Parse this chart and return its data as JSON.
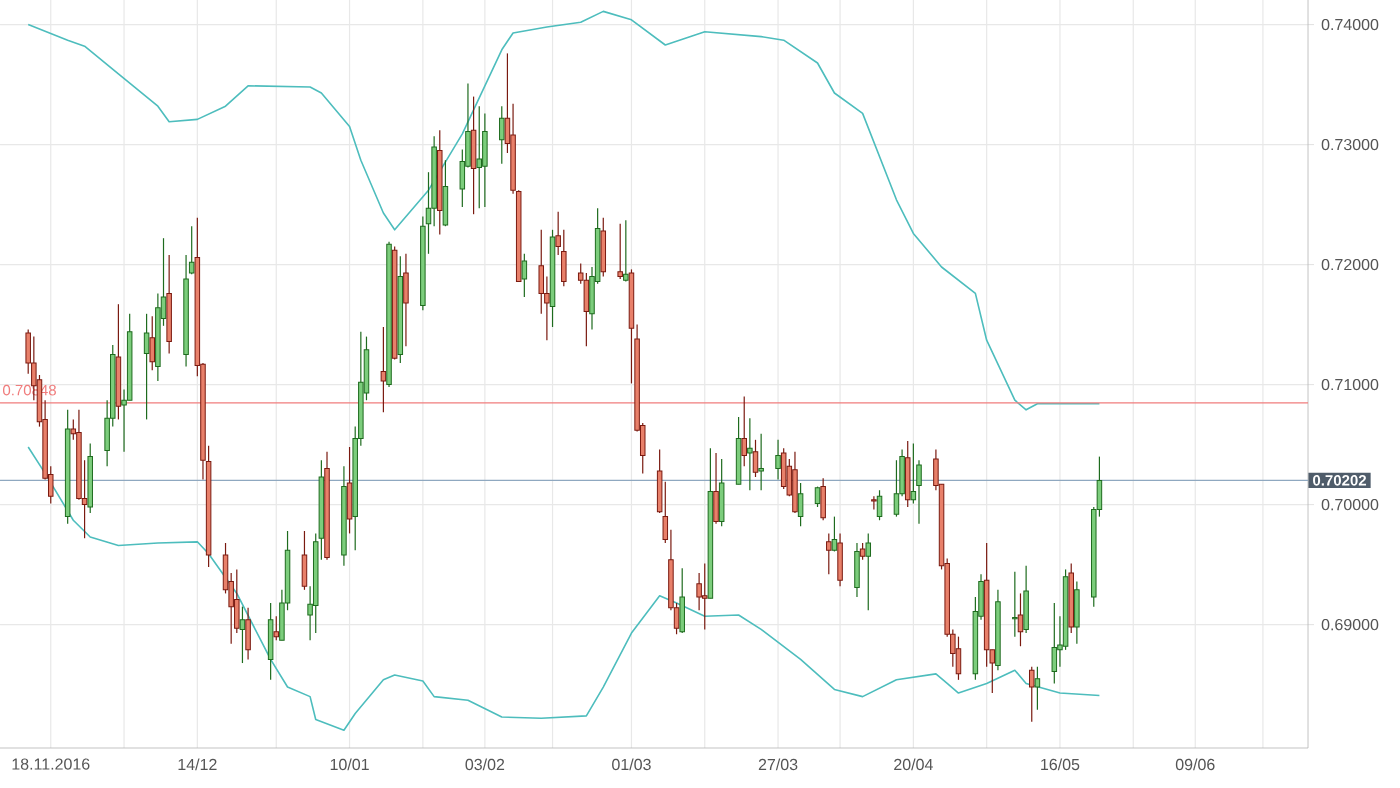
{
  "chart_data": {
    "type": "candlestick",
    "x": [
      "2016-11-14",
      "2016-11-15",
      "2016-11-16",
      "2016-11-17",
      "2016-11-18",
      "2016-11-21",
      "2016-11-22",
      "2016-11-23",
      "2016-11-24",
      "2016-11-25",
      "2016-11-28",
      "2016-11-29",
      "2016-11-30",
      "2016-12-01",
      "2016-12-02",
      "2016-12-05",
      "2016-12-06",
      "2016-12-07",
      "2016-12-08",
      "2016-12-09",
      "2016-12-12",
      "2016-12-13",
      "2016-12-14",
      "2016-12-15",
      "2016-12-16",
      "2016-12-19",
      "2016-12-20",
      "2016-12-21",
      "2016-12-22",
      "2016-12-23",
      "2016-12-27",
      "2016-12-28",
      "2016-12-29",
      "2016-12-30",
      "2017-01-02",
      "2017-01-03",
      "2017-01-04",
      "2017-01-05",
      "2017-01-06",
      "2017-01-09",
      "2017-01-10",
      "2017-01-11",
      "2017-01-12",
      "2017-01-13",
      "2017-01-16",
      "2017-01-17",
      "2017-01-18",
      "2017-01-19",
      "2017-01-20",
      "2017-01-23",
      "2017-01-24",
      "2017-01-25",
      "2017-01-26",
      "2017-01-27",
      "2017-01-30",
      "2017-01-31",
      "2017-02-01",
      "2017-02-02",
      "2017-02-03",
      "2017-02-06",
      "2017-02-07",
      "2017-02-08",
      "2017-02-09",
      "2017-02-10",
      "2017-02-13",
      "2017-02-14",
      "2017-02-15",
      "2017-02-16",
      "2017-02-17",
      "2017-02-20",
      "2017-02-21",
      "2017-02-22",
      "2017-02-23",
      "2017-02-24",
      "2017-02-27",
      "2017-02-28",
      "2017-03-01",
      "2017-03-02",
      "2017-03-03",
      "2017-03-06",
      "2017-03-07",
      "2017-03-08",
      "2017-03-09",
      "2017-03-10",
      "2017-03-13",
      "2017-03-14",
      "2017-03-15",
      "2017-03-16",
      "2017-03-17",
      "2017-03-20",
      "2017-03-21",
      "2017-03-22",
      "2017-03-23",
      "2017-03-24",
      "2017-03-27",
      "2017-03-28",
      "2017-03-29",
      "2017-03-30",
      "2017-03-31",
      "2017-04-03",
      "2017-04-04",
      "2017-04-05",
      "2017-04-06",
      "2017-04-07",
      "2017-04-10",
      "2017-04-11",
      "2017-04-12",
      "2017-04-13",
      "2017-04-14",
      "2017-04-17",
      "2017-04-18",
      "2017-04-19",
      "2017-04-20",
      "2017-04-21",
      "2017-04-24",
      "2017-04-25",
      "2017-04-26",
      "2017-04-27",
      "2017-04-28",
      "2017-05-01",
      "2017-05-02",
      "2017-05-03",
      "2017-05-04",
      "2017-05-05",
      "2017-05-08",
      "2017-05-09",
      "2017-05-10",
      "2017-05-11",
      "2017-05-12",
      "2017-05-15",
      "2017-05-16",
      "2017-05-17",
      "2017-05-18",
      "2017-05-19",
      "2017-05-22",
      "2017-05-23"
    ],
    "xlim": [
      "2016-11-09",
      "2017-06-29"
    ],
    "xticks": [
      {
        "value": "2016-11-18",
        "label": "18.11.2016"
      },
      {
        "value": "2016-12-01",
        "label": null
      },
      {
        "value": "2016-12-14",
        "label": "14/12"
      },
      {
        "value": "2016-12-28",
        "label": null
      },
      {
        "value": "2017-01-10",
        "label": "10/01"
      },
      {
        "value": "2017-01-23",
        "label": null
      },
      {
        "value": "2017-02-03",
        "label": "03/02"
      },
      {
        "value": "2017-02-15",
        "label": null
      },
      {
        "value": "2017-03-01",
        "label": "01/03"
      },
      {
        "value": "2017-03-14",
        "label": null
      },
      {
        "value": "2017-03-27",
        "label": "27/03"
      },
      {
        "value": "2017-04-07",
        "label": null
      },
      {
        "value": "2017-04-20",
        "label": "20/04"
      },
      {
        "value": "2017-05-03",
        "label": null
      },
      {
        "value": "2017-05-16",
        "label": "16/05"
      },
      {
        "value": "2017-05-29",
        "label": null
      },
      {
        "value": "2017-06-09",
        "label": "09/06"
      },
      {
        "value": "2017-06-21",
        "label": null
      }
    ],
    "ohlc": [
      [
        0.7143,
        0.7146,
        0.7109,
        0.7118
      ],
      [
        0.7118,
        0.714,
        0.7087,
        0.7099
      ],
      [
        0.7104,
        0.7108,
        0.7065,
        0.7069
      ],
      [
        0.7071,
        0.7087,
        0.7021,
        0.7022
      ],
      [
        0.7025,
        0.7032,
        0.7001,
        0.7007
      ],
      [
        0.699,
        0.7079,
        0.6984,
        0.7063
      ],
      [
        0.7063,
        0.7071,
        0.7054,
        0.7059
      ],
      [
        0.706,
        0.7079,
        0.7004,
        0.7005
      ],
      [
        0.7005,
        0.7037,
        0.6972,
        0.7
      ],
      [
        0.6998,
        0.7051,
        0.6993,
        0.704
      ],
      [
        0.7045,
        0.7087,
        0.7032,
        0.7072
      ],
      [
        0.7072,
        0.7133,
        0.7065,
        0.7125
      ],
      [
        0.7123,
        0.7167,
        0.7071,
        0.7082
      ],
      [
        0.7083,
        0.7096,
        0.7044,
        0.7087
      ],
      [
        0.7087,
        0.7159,
        0.7087,
        0.7144
      ],
      [
        0.7126,
        0.7159,
        0.7071,
        0.7143
      ],
      [
        0.7139,
        0.7157,
        0.7112,
        0.7119
      ],
      [
        0.7115,
        0.7176,
        0.7103,
        0.7164
      ],
      [
        0.7155,
        0.7222,
        0.7149,
        0.7173
      ],
      [
        0.7176,
        0.7208,
        0.7126,
        0.7136
      ],
      [
        0.7125,
        0.7208,
        0.7115,
        0.7188
      ],
      [
        0.7193,
        0.7232,
        0.7192,
        0.7202
      ],
      [
        0.7206,
        0.7239,
        0.7107,
        0.7116
      ],
      [
        0.7117,
        0.7118,
        0.7021,
        0.7037
      ],
      [
        0.7036,
        0.7049,
        0.6948,
        0.6958
      ],
      [
        0.6958,
        0.6968,
        0.6926,
        0.6929
      ],
      [
        0.6936,
        0.6943,
        0.6884,
        0.6915
      ],
      [
        0.6921,
        0.6946,
        0.6893,
        0.6897
      ],
      [
        0.6896,
        0.6915,
        0.6868,
        0.6904
      ],
      [
        0.6904,
        0.6914,
        0.6871,
        0.6879
      ],
      [
        0.6871,
        0.6918,
        0.6854,
        0.6904
      ],
      [
        0.6894,
        0.6907,
        0.6887,
        0.689
      ],
      [
        0.6887,
        0.6929,
        0.6887,
        0.6918
      ],
      [
        0.6918,
        0.6978,
        0.6912,
        0.6962
      ],
      [
        0.6958,
        0.6978,
        0.6929,
        0.6932
      ],
      [
        0.6908,
        0.6932,
        0.6887,
        0.6917
      ],
      [
        0.6916,
        0.6976,
        0.6893,
        0.6969
      ],
      [
        0.6972,
        0.7037,
        0.6954,
        0.7023
      ],
      [
        0.703,
        0.7044,
        0.6954,
        0.6956
      ],
      [
        0.6958,
        0.7032,
        0.6949,
        0.7015
      ],
      [
        0.7018,
        0.7048,
        0.6976,
        0.6988
      ],
      [
        0.699,
        0.7065,
        0.6962,
        0.7055
      ],
      [
        0.7055,
        0.7144,
        0.7049,
        0.7102
      ],
      [
        0.7093,
        0.714,
        0.7087,
        0.7129
      ],
      [
        0.7111,
        0.7148,
        0.7077,
        0.7103
      ],
      [
        0.71,
        0.7219,
        0.7098,
        0.7217
      ],
      [
        0.7212,
        0.7215,
        0.7121,
        0.7122
      ],
      [
        0.7125,
        0.7207,
        0.7118,
        0.719
      ],
      [
        0.7193,
        0.7209,
        0.7132,
        0.7168
      ],
      [
        0.7166,
        0.724,
        0.7162,
        0.7232
      ],
      [
        0.7234,
        0.7277,
        0.7209,
        0.7247
      ],
      [
        0.7247,
        0.7307,
        0.7232,
        0.7298
      ],
      [
        0.7295,
        0.7312,
        0.7225,
        0.7245
      ],
      [
        0.7233,
        0.7287,
        0.7232,
        0.7265
      ],
      [
        0.7263,
        0.7296,
        0.7248,
        0.7286
      ],
      [
        0.7282,
        0.7351,
        0.7281,
        0.7311
      ],
      [
        0.7312,
        0.734,
        0.7242,
        0.728
      ],
      [
        0.7281,
        0.7332,
        0.7247,
        0.7288
      ],
      [
        0.7282,
        0.7326,
        0.7248,
        0.7311
      ],
      [
        0.7304,
        0.7332,
        0.7284,
        0.7322
      ],
      [
        0.7322,
        0.7376,
        0.7293,
        0.7301
      ],
      [
        0.7308,
        0.7334,
        0.7259,
        0.7262
      ],
      [
        0.7261,
        0.7262,
        0.7186,
        0.7186
      ],
      [
        0.7188,
        0.7209,
        0.7173,
        0.7203
      ],
      [
        0.7199,
        0.7229,
        0.7159,
        0.7176
      ],
      [
        0.7176,
        0.719,
        0.7137,
        0.7168
      ],
      [
        0.7165,
        0.7229,
        0.7148,
        0.7223
      ],
      [
        0.7224,
        0.7244,
        0.7208,
        0.7215
      ],
      [
        0.7211,
        0.7229,
        0.7182,
        0.7186
      ],
      [
        0.7193,
        0.7201,
        0.7184,
        0.7187
      ],
      [
        0.7187,
        0.7193,
        0.7132,
        0.7161
      ],
      [
        0.7159,
        0.7198,
        0.7146,
        0.719
      ],
      [
        0.7186,
        0.7247,
        0.7184,
        0.723
      ],
      [
        0.7228,
        0.7239,
        0.719,
        0.7194
      ],
      [
        0.7194,
        0.7234,
        0.7188,
        0.719
      ],
      [
        0.7187,
        0.7237,
        0.7186,
        0.7192
      ],
      [
        0.7193,
        0.7196,
        0.7101,
        0.7147
      ],
      [
        0.7138,
        0.715,
        0.7061,
        0.7062
      ],
      [
        0.7066,
        0.7068,
        0.7026,
        0.7041
      ],
      [
        0.7028,
        0.7046,
        0.6993,
        0.6994
      ],
      [
        0.699,
        0.7019,
        0.6968,
        0.6971
      ],
      [
        0.6954,
        0.6979,
        0.6912,
        0.6914
      ],
      [
        0.6914,
        0.6918,
        0.6892,
        0.6897
      ],
      [
        0.6894,
        0.6947,
        0.6893,
        0.6923
      ],
      [
        0.6934,
        0.6943,
        0.6912,
        0.6923
      ],
      [
        0.6924,
        0.6951,
        0.6896,
        0.6922
      ],
      [
        0.6922,
        0.7047,
        0.6922,
        0.7011
      ],
      [
        0.7011,
        0.7043,
        0.6984,
        0.6986
      ],
      [
        0.6986,
        0.7038,
        0.6982,
        0.7018
      ],
      [
        0.7017,
        0.7073,
        0.7017,
        0.7055
      ],
      [
        0.7055,
        0.709,
        0.7032,
        0.7041
      ],
      [
        0.7043,
        0.7072,
        0.7012,
        0.7047
      ],
      [
        0.7044,
        0.7054,
        0.7023,
        0.7027
      ],
      [
        0.7028,
        0.7059,
        0.7012,
        0.703
      ],
      [
        0.703,
        0.7054,
        0.7021,
        0.7041
      ],
      [
        0.7043,
        0.7047,
        0.7013,
        0.7015
      ],
      [
        0.7032,
        0.7038,
        0.7007,
        0.7008
      ],
      [
        0.7029,
        0.7044,
        0.6993,
        0.6994
      ],
      [
        0.699,
        0.7018,
        0.6982,
        0.7009
      ],
      [
        0.7001,
        0.7015,
        0.6998,
        0.7014
      ],
      [
        0.7015,
        0.7022,
        0.6987,
        0.6989
      ],
      [
        0.6969,
        0.6976,
        0.6942,
        0.6962
      ],
      [
        0.6962,
        0.699,
        0.6961,
        0.6971
      ],
      [
        0.6968,
        0.6976,
        0.6932,
        0.6937
      ],
      [
        0.6931,
        0.6968,
        0.6923,
        0.6961
      ],
      [
        0.6963,
        0.6968,
        0.6954,
        0.6957
      ],
      [
        0.6957,
        0.6976,
        0.6912,
        0.6968
      ],
      [
        0.7004,
        0.7007,
        0.6996,
        0.7003
      ],
      [
        0.699,
        0.7012,
        0.6987,
        0.7007
      ],
      [
        0.6992,
        0.7037,
        0.699,
        0.7009
      ],
      [
        0.7009,
        0.7046,
        0.7007,
        0.704
      ],
      [
        0.7039,
        0.7053,
        0.6998,
        0.7004
      ],
      [
        0.7004,
        0.7051,
        0.7001,
        0.7011
      ],
      [
        0.7016,
        0.7037,
        0.6984,
        0.7033
      ],
      [
        0.7038,
        0.7046,
        0.7012,
        0.7016
      ],
      [
        0.7017,
        0.7017,
        0.6946,
        0.6949
      ],
      [
        0.6951,
        0.6955,
        0.689,
        0.6892
      ],
      [
        0.6892,
        0.6896,
        0.6865,
        0.6876
      ],
      [
        0.688,
        0.689,
        0.6854,
        0.6859
      ],
      [
        0.6859,
        0.6923,
        0.6854,
        0.6911
      ],
      [
        0.6907,
        0.6942,
        0.6904,
        0.6936
      ],
      [
        0.6937,
        0.6968,
        0.6865,
        0.6879
      ],
      [
        0.6879,
        0.6879,
        0.6843,
        0.6868
      ],
      [
        0.6866,
        0.6929,
        0.6862,
        0.6919
      ],
      [
        0.6905,
        0.6944,
        0.689,
        0.6906
      ],
      [
        0.6908,
        0.6926,
        0.6882,
        0.6894
      ],
      [
        0.6896,
        0.6949,
        0.6893,
        0.6928
      ],
      [
        0.6862,
        0.6865,
        0.6819,
        0.6848
      ],
      [
        0.6848,
        0.6865,
        0.6829,
        0.6855
      ],
      [
        0.6861,
        0.6918,
        0.6851,
        0.6881
      ],
      [
        0.6879,
        0.6907,
        0.6865,
        0.6883
      ],
      [
        0.6882,
        0.6946,
        0.6879,
        0.694
      ],
      [
        0.6943,
        0.6951,
        0.6893,
        0.6898
      ],
      [
        0.6898,
        0.6936,
        0.6884,
        0.6929
      ],
      [
        0.6923,
        0.6998,
        0.6915,
        0.6996
      ],
      [
        0.6996,
        0.704,
        0.699,
        0.70202
      ]
    ],
    "series": [
      {
        "type": "line",
        "color": "#4dbdbd",
        "x": [
          "2016-11-14",
          "2016-11-21",
          "2016-11-24",
          "2016-11-30",
          "2016-12-07",
          "2016-12-09",
          "2016-12-14",
          "2016-12-19",
          "2016-12-23",
          "2017-01-03",
          "2017-01-05",
          "2017-01-10",
          "2017-01-12",
          "2017-01-16",
          "2017-01-18",
          "2017-01-24",
          "2017-01-30",
          "2017-02-06",
          "2017-02-08",
          "2017-02-14",
          "2017-02-20",
          "2017-02-24",
          "2017-03-01",
          "2017-03-07",
          "2017-03-14",
          "2017-03-24",
          "2017-03-28",
          "2017-04-03",
          "2017-04-06",
          "2017-04-11",
          "2017-04-17",
          "2017-04-20",
          "2017-04-25",
          "2017-05-01",
          "2017-05-03",
          "2017-05-08",
          "2017-05-10",
          "2017-05-12",
          "2017-05-23"
        ],
        "values": [
          0.74,
          0.7387,
          0.7382,
          0.7359,
          0.7332,
          0.7319,
          0.7321,
          0.7332,
          0.7349,
          0.7348,
          0.7343,
          0.7315,
          0.7287,
          0.7243,
          0.7229,
          0.7262,
          0.7309,
          0.7379,
          0.7393,
          0.7398,
          0.7402,
          0.7411,
          0.7404,
          0.7383,
          0.7394,
          0.739,
          0.7387,
          0.7368,
          0.7343,
          0.7326,
          0.7254,
          0.7226,
          0.7198,
          0.7176,
          0.7137,
          0.7087,
          0.7079,
          0.7084,
          0.7084
        ]
      },
      {
        "type": "line",
        "color": "#4dbdbd",
        "x": [
          "2016-11-14",
          "2016-11-17",
          "2016-11-22",
          "2016-11-25",
          "2016-11-30",
          "2016-12-07",
          "2016-12-14",
          "2016-12-16",
          "2016-12-21",
          "2016-12-27",
          "2016-12-30",
          "2017-01-03",
          "2017-01-04",
          "2017-01-09",
          "2017-01-11",
          "2017-01-16",
          "2017-01-18",
          "2017-01-23",
          "2017-01-25",
          "2017-01-31",
          "2017-02-06",
          "2017-02-13",
          "2017-02-21",
          "2017-02-24",
          "2017-03-01",
          "2017-03-06",
          "2017-03-09",
          "2017-03-14",
          "2017-03-20",
          "2017-03-24",
          "2017-03-31",
          "2017-04-06",
          "2017-04-11",
          "2017-04-17",
          "2017-04-24",
          "2017-04-26",
          "2017-04-28",
          "2017-05-03",
          "2017-05-08",
          "2017-05-10",
          "2017-05-16",
          "2017-05-23"
        ],
        "values": [
          0.7048,
          0.7026,
          0.6987,
          0.6973,
          0.6966,
          0.6968,
          0.6969,
          0.6959,
          0.6926,
          0.6871,
          0.6848,
          0.684,
          0.6821,
          0.6812,
          0.6826,
          0.6854,
          0.6858,
          0.6853,
          0.684,
          0.6837,
          0.6823,
          0.6822,
          0.6824,
          0.6848,
          0.6893,
          0.6924,
          0.6918,
          0.6907,
          0.6908,
          0.6896,
          0.6871,
          0.6846,
          0.684,
          0.6854,
          0.6859,
          0.6851,
          0.6843,
          0.6851,
          0.6862,
          0.6851,
          0.6843,
          0.6841
        ]
      }
    ],
    "ylim": [
      0.67972,
      0.74205
    ],
    "yticks": [
      {
        "value": 0.69,
        "label": "0.69000"
      },
      {
        "value": 0.7,
        "label": "0.70000"
      },
      {
        "value": 0.71,
        "label": "0.71000"
      },
      {
        "value": 0.72,
        "label": "0.72000"
      },
      {
        "value": 0.73,
        "label": "0.73000"
      },
      {
        "value": 0.74,
        "label": "0.74000"
      }
    ],
    "ref_lines": [
      {
        "axis": "y",
        "value": 0.70848,
        "label": "0.70848",
        "color": "#f07c7c"
      },
      {
        "axis": "y",
        "value": 0.70202,
        "label": "0.70202",
        "color": "#8fa8c0"
      }
    ],
    "grid": true
  }
}
